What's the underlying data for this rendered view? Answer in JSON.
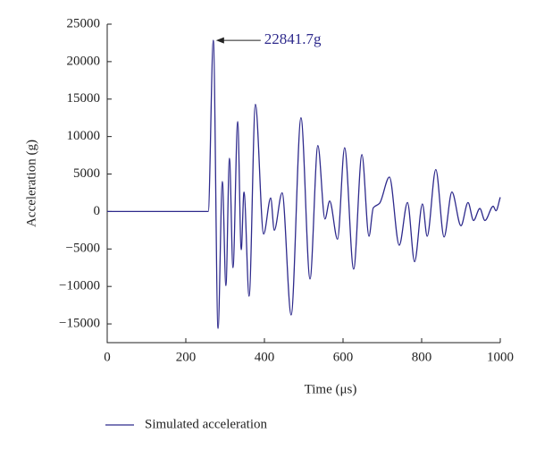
{
  "chart_data": {
    "type": "line",
    "xlabel": "Time (μs)",
    "ylabel": "Acceleration (g)",
    "annotation": "22841.7g",
    "xlim": [
      0,
      1000
    ],
    "xticks": [
      0,
      200,
      400,
      600,
      800,
      1000
    ],
    "ylim": [
      -17500,
      25000
    ],
    "yticks": [
      {
        "value": -15000,
        "label": "−15000"
      },
      {
        "value": -10000,
        "label": "−10000"
      },
      {
        "value": -5000,
        "label": "−5000"
      },
      0,
      5000,
      10000,
      15000,
      20000,
      25000
    ],
    "series": [
      {
        "name": "Simulated acceleration",
        "color": "#2e2a8c",
        "x": [
          0,
          250,
          257,
          270,
          282,
          293,
          302,
          311,
          320,
          332,
          341,
          348,
          361,
          377,
          398,
          416,
          425,
          445,
          468,
          493,
          516,
          536,
          554,
          566,
          586,
          604,
          627,
          648,
          666,
          677,
          693,
          718,
          743,
          764,
          782,
          802,
          814,
          836,
          857,
          877,
          900,
          918,
          932,
          948,
          961,
          982,
          989,
          1000
        ],
        "values": [
          0,
          0,
          0,
          22841.7,
          -15600,
          4000,
          -9900,
          7100,
          -7500,
          12000,
          -5100,
          2600,
          -11300,
          14300,
          -3000,
          1800,
          -2500,
          2500,
          -13800,
          12500,
          -9000,
          8800,
          -1000,
          1400,
          -3700,
          8500,
          -7700,
          7600,
          -3300,
          500,
          1100,
          4600,
          -4500,
          1200,
          -6700,
          1000,
          -3300,
          5600,
          -3400,
          2600,
          -1900,
          1200,
          -1200,
          400,
          -1200,
          700,
          100,
          1900
        ]
      }
    ]
  }
}
